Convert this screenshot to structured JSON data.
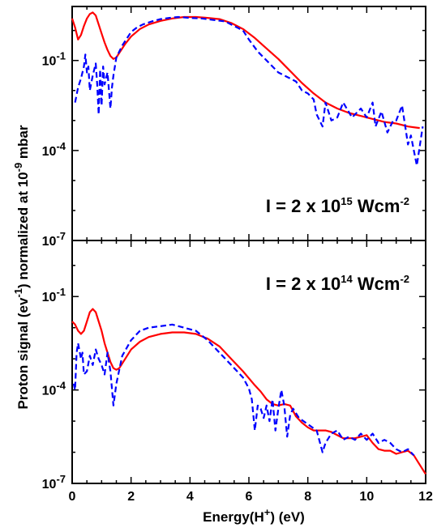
{
  "colors": {
    "solid": "#ff0000",
    "dashed": "#0000ff",
    "axes": "#000000"
  },
  "x_axis": {
    "label": "Energy(H",
    "label_sup": "+",
    "label_end": ") (eV)",
    "ticks": [
      "0",
      "2",
      "4",
      "6",
      "8",
      "10",
      "12"
    ]
  },
  "y_axis": {
    "label_part1": "Proton signal (ev",
    "label_sup1": "-1",
    "label_part2": ") normalized at 10",
    "label_sup2": "-9",
    "label_part3": " mbar",
    "tick_base": "10",
    "ticks_top": [
      "-1",
      "-4",
      "-7"
    ],
    "ticks_bottom": [
      "-1",
      "-4",
      "-7"
    ]
  },
  "chart_data": [
    {
      "type": "line",
      "panel": "top",
      "annotation": {
        "text": "I = 2 x 10",
        "sup": "15",
        "mid": " Wcm",
        "sup2": "-2"
      },
      "xlim": [
        0,
        12
      ],
      "ylim_log10": [
        -7,
        0.8
      ],
      "y_scale": "log",
      "series": [
        {
          "style": "solid",
          "x": [
            0,
            0.1,
            0.2,
            0.3,
            0.4,
            0.5,
            0.6,
            0.7,
            0.8,
            0.9,
            1.0,
            1.1,
            1.2,
            1.3,
            1.4,
            1.5,
            1.6,
            1.8,
            2.0,
            2.3,
            2.6,
            3.0,
            3.4,
            3.8,
            4.2,
            4.6,
            5.0,
            5.4,
            5.8,
            6.2,
            6.6,
            7.0,
            7.4,
            7.8,
            8.2,
            8.6,
            9.0,
            9.4,
            9.8,
            10.2,
            10.6,
            11.0,
            11.4,
            11.8
          ],
          "y_log10": [
            0.4,
            0.1,
            -0.3,
            -0.15,
            0.15,
            0.4,
            0.55,
            0.6,
            0.5,
            0.2,
            -0.1,
            -0.4,
            -0.65,
            -0.85,
            -0.95,
            -0.9,
            -0.75,
            -0.45,
            -0.2,
            0.05,
            0.2,
            0.32,
            0.4,
            0.45,
            0.45,
            0.42,
            0.38,
            0.25,
            0.05,
            -0.25,
            -0.6,
            -0.95,
            -1.35,
            -1.75,
            -2.1,
            -2.4,
            -2.6,
            -2.75,
            -2.85,
            -2.95,
            -3.05,
            -3.1,
            -3.2,
            -3.25
          ]
        },
        {
          "style": "dashed",
          "x": [
            0.1,
            0.2,
            0.3,
            0.4,
            0.45,
            0.5,
            0.55,
            0.6,
            0.7,
            0.8,
            0.85,
            0.9,
            0.95,
            1.0,
            1.05,
            1.1,
            1.2,
            1.3,
            1.35,
            1.4,
            1.5,
            1.7,
            2.0,
            2.2,
            2.4,
            2.7,
            3.0,
            3.3,
            3.6,
            4.0,
            4.4,
            4.8,
            5.2,
            5.5,
            5.8,
            6.0,
            6.3,
            6.6,
            6.8,
            7.0,
            7.2,
            7.4,
            7.6,
            7.8,
            8.0,
            8.2,
            8.3,
            8.5,
            8.6,
            8.8,
            9.0,
            9.2,
            9.5,
            9.8,
            10.0,
            10.2,
            10.3,
            10.5,
            10.7,
            10.9,
            11.0,
            11.2,
            11.4,
            11.5,
            11.7,
            11.9
          ],
          "y_log10": [
            -2.4,
            -1.9,
            -1.6,
            -1.2,
            -0.8,
            -1.4,
            -1.2,
            -2.0,
            -1.5,
            -1.1,
            -1.8,
            -2.8,
            -1.3,
            -2.5,
            -1.2,
            -1.8,
            -1.4,
            -2.6,
            -1.9,
            -1.5,
            -0.9,
            -0.5,
            -0.05,
            0.1,
            0.2,
            0.3,
            0.38,
            0.42,
            0.45,
            0.42,
            0.4,
            0.35,
            0.3,
            0.15,
            0.0,
            -0.3,
            -0.7,
            -1.0,
            -1.2,
            -1.4,
            -1.5,
            -1.6,
            -1.7,
            -2.0,
            -2.1,
            -2.3,
            -2.8,
            -3.2,
            -2.4,
            -3.0,
            -2.9,
            -2.4,
            -2.9,
            -2.6,
            -2.9,
            -2.4,
            -3.2,
            -2.7,
            -3.4,
            -3.0,
            -3.0,
            -2.5,
            -3.8,
            -3.5,
            -4.5,
            -3.2
          ]
        }
      ]
    },
    {
      "type": "line",
      "panel": "bottom",
      "annotation": {
        "text": "I = 2 x 10",
        "sup": "14",
        "mid": " Wcm",
        "sup2": "-2"
      },
      "xlim": [
        0,
        12
      ],
      "ylim_log10": [
        -7,
        0.8
      ],
      "y_scale": "log",
      "series": [
        {
          "style": "solid",
          "x": [
            0,
            0.1,
            0.2,
            0.3,
            0.4,
            0.5,
            0.6,
            0.7,
            0.8,
            0.9,
            1.0,
            1.1,
            1.2,
            1.3,
            1.4,
            1.5,
            1.6,
            1.8,
            2.0,
            2.3,
            2.6,
            3.0,
            3.4,
            3.8,
            4.2,
            4.6,
            5.0,
            5.4,
            5.8,
            6.2,
            6.4,
            6.6,
            6.8,
            7.0,
            7.2,
            7.4,
            7.6,
            7.8,
            8.0,
            8.2,
            8.4,
            8.6,
            8.8,
            9.0,
            9.2,
            9.4,
            9.6,
            9.8,
            10.0,
            10.2,
            10.4,
            10.6,
            10.8,
            11.0,
            11.2,
            11.4,
            11.6,
            11.8,
            12.0
          ],
          "y_log10": [
            -1.8,
            -1.9,
            -2.1,
            -2.2,
            -2.1,
            -1.8,
            -1.5,
            -1.4,
            -1.5,
            -1.8,
            -2.1,
            -2.5,
            -2.8,
            -3.1,
            -3.3,
            -3.35,
            -3.3,
            -3.0,
            -2.7,
            -2.45,
            -2.3,
            -2.2,
            -2.15,
            -2.15,
            -2.2,
            -2.35,
            -2.6,
            -3.0,
            -3.4,
            -3.85,
            -4.05,
            -4.3,
            -4.45,
            -4.5,
            -4.45,
            -4.5,
            -4.85,
            -5.05,
            -5.2,
            -5.3,
            -5.3,
            -5.3,
            -5.35,
            -5.45,
            -5.55,
            -5.55,
            -5.55,
            -5.5,
            -5.45,
            -5.7,
            -5.9,
            -5.95,
            -5.95,
            -6.05,
            -6.0,
            -5.95,
            -6.1,
            -6.4,
            -6.7
          ]
        },
        {
          "style": "dashed",
          "x": [
            0.05,
            0.1,
            0.15,
            0.2,
            0.3,
            0.35,
            0.4,
            0.5,
            0.6,
            0.7,
            0.8,
            0.9,
            1.0,
            1.1,
            1.2,
            1.3,
            1.4,
            1.5,
            1.7,
            2.0,
            2.3,
            2.6,
            3.0,
            3.4,
            3.8,
            4.2,
            4.6,
            5.0,
            5.4,
            5.8,
            6.0,
            6.1,
            6.2,
            6.3,
            6.4,
            6.5,
            6.6,
            6.7,
            6.8,
            6.9,
            7.0,
            7.1,
            7.2,
            7.3,
            7.4,
            7.5,
            7.7,
            8.0,
            8.3,
            8.5,
            8.6,
            8.8,
            9.0,
            9.2,
            9.4,
            9.6,
            9.8,
            10.0,
            10.2,
            10.4,
            10.6,
            10.8,
            11.0,
            11.2,
            11.4,
            11.6
          ],
          "y_log10": [
            -3.8,
            -4.0,
            -2.8,
            -2.5,
            -3.0,
            -2.8,
            -3.5,
            -3.4,
            -2.9,
            -3.2,
            -2.7,
            -3.0,
            -3.2,
            -3.5,
            -2.8,
            -3.4,
            -4.5,
            -3.8,
            -2.9,
            -2.4,
            -2.1,
            -2.0,
            -1.95,
            -1.9,
            -2.0,
            -2.1,
            -2.4,
            -2.8,
            -3.2,
            -3.6,
            -3.95,
            -4.3,
            -5.3,
            -4.5,
            -4.6,
            -4.9,
            -4.5,
            -5.0,
            -4.3,
            -5.3,
            -4.6,
            -4.0,
            -4.5,
            -5.5,
            -4.8,
            -4.6,
            -4.9,
            -5.1,
            -5.3,
            -6.0,
            -5.7,
            -5.4,
            -5.3,
            -5.6,
            -5.5,
            -5.6,
            -5.4,
            -5.6,
            -5.4,
            -5.7,
            -5.6,
            -5.7,
            -5.9,
            -6.0,
            -5.9,
            -6.1
          ]
        }
      ]
    }
  ]
}
